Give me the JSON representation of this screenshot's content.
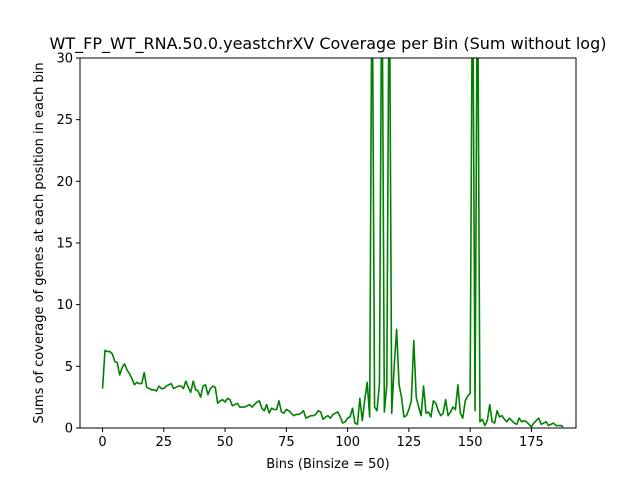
{
  "chart_data": {
    "type": "line",
    "title": "WT_FP_WT_RNA.50.0.yeastchrXV Coverage per Bin (Sum without log)",
    "xlabel": "Bins (Binsize = 50)",
    "ylabel": "Sums of coverage of genes at each position in each bin",
    "xlim": [
      -9.2,
      193.2
    ],
    "ylim": [
      0,
      30
    ],
    "x_ticks": [
      0,
      25,
      50,
      75,
      100,
      125,
      150,
      175
    ],
    "y_ticks": [
      0,
      5,
      10,
      15,
      20,
      25,
      30
    ],
    "grid": false,
    "series": [
      {
        "color": "#008000",
        "x_start": 0,
        "x_step": 1,
        "values": [
          3.2,
          6.3,
          6.2,
          6.2,
          6.0,
          5.4,
          5.3,
          4.3,
          4.9,
          5.2,
          4.7,
          4.4,
          4.0,
          3.5,
          3.7,
          3.6,
          3.6,
          4.5,
          3.3,
          3.2,
          3.1,
          3.1,
          3.0,
          3.4,
          3.2,
          3.2,
          3.4,
          3.5,
          3.6,
          3.2,
          3.3,
          3.4,
          3.4,
          3.2,
          3.8,
          3.3,
          2.9,
          3.8,
          3.1,
          3.0,
          2.5,
          3.4,
          3.5,
          2.7,
          3.2,
          3.4,
          3.3,
          2.0,
          2.2,
          2.3,
          2.1,
          2.4,
          2.3,
          1.8,
          1.9,
          2.0,
          1.7,
          1.7,
          1.7,
          1.8,
          1.9,
          1.7,
          1.9,
          2.1,
          2.2,
          1.6,
          1.4,
          1.9,
          1.2,
          1.6,
          1.5,
          1.5,
          2.2,
          1.3,
          1.2,
          1.5,
          1.4,
          1.2,
          1.0,
          1.1,
          1.1,
          1.2,
          1.4,
          0.8,
          0.9,
          1.0,
          1.0,
          1.1,
          1.4,
          1.3,
          0.7,
          0.9,
          1.0,
          0.8,
          1.1,
          1.2,
          1.3,
          0.9,
          0.4,
          0.5,
          0.8,
          0.9,
          1.6,
          0.4,
          0.3,
          2.4,
          0.6,
          2.3,
          3.7,
          0.9,
          40,
          1.7,
          1.4,
          3.6,
          40,
          1.3,
          3.5,
          40,
          1.2,
          5.0,
          8.0,
          3.5,
          2.5,
          0.9,
          1.0,
          1.5,
          2.2,
          7.1,
          2.5,
          1.7,
          1.0,
          3.4,
          1.2,
          1.3,
          0.9,
          2.2,
          2.0,
          1.4,
          1.0,
          1.2,
          2.3,
          1.0,
          1.3,
          1.7,
          1.5,
          3.5,
          1.2,
          0.8,
          2.2,
          2.6,
          2.8,
          40,
          1.4,
          40,
          0.5,
          0.7,
          0.2,
          0.6,
          1.9,
          0.5,
          0.4,
          1.4,
          0.9,
          1.0,
          0.7,
          0.5,
          0.8,
          0.6,
          0.4,
          0.3,
          0.8,
          0.5,
          0.6,
          0.5,
          0.3,
          0.1,
          0.4,
          0.6,
          0.8,
          0.3,
          0.4,
          0.5,
          0.2,
          0.3,
          0.4,
          0.2,
          0.2,
          0.2,
          0.1
        ]
      }
    ]
  }
}
